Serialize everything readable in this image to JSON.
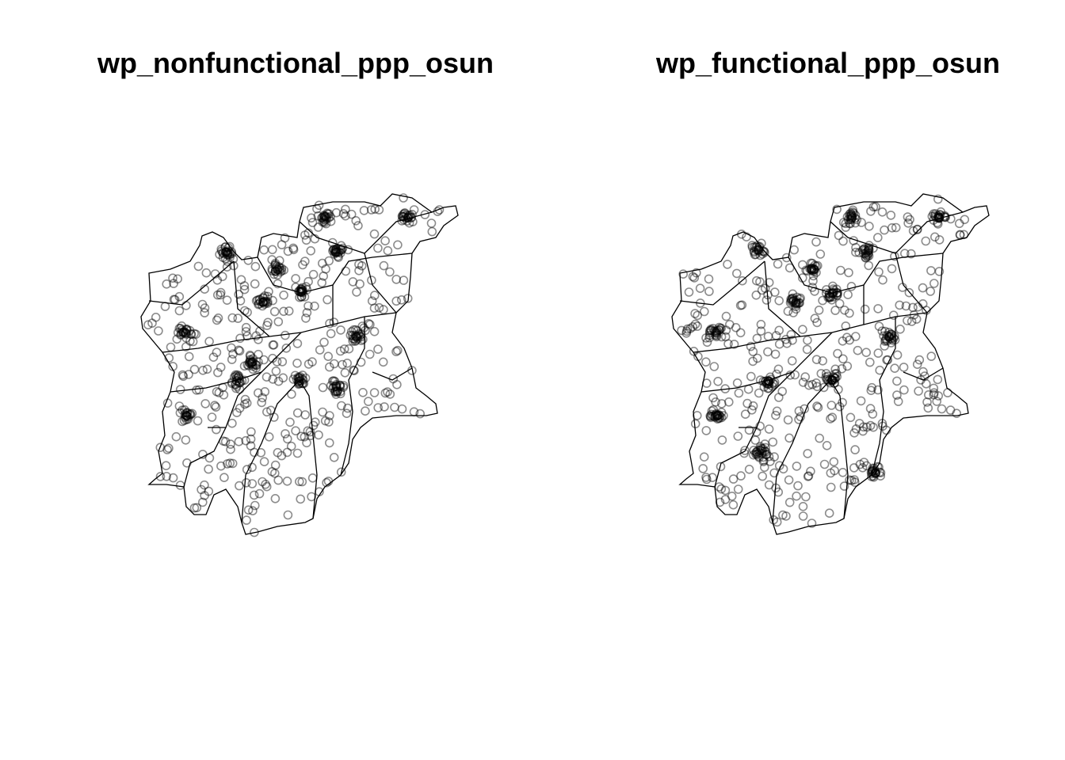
{
  "panels": [
    {
      "title": "wp_nonfunctional_ppp_osun"
    },
    {
      "title": "wp_functional_ppp_osun"
    }
  ]
}
